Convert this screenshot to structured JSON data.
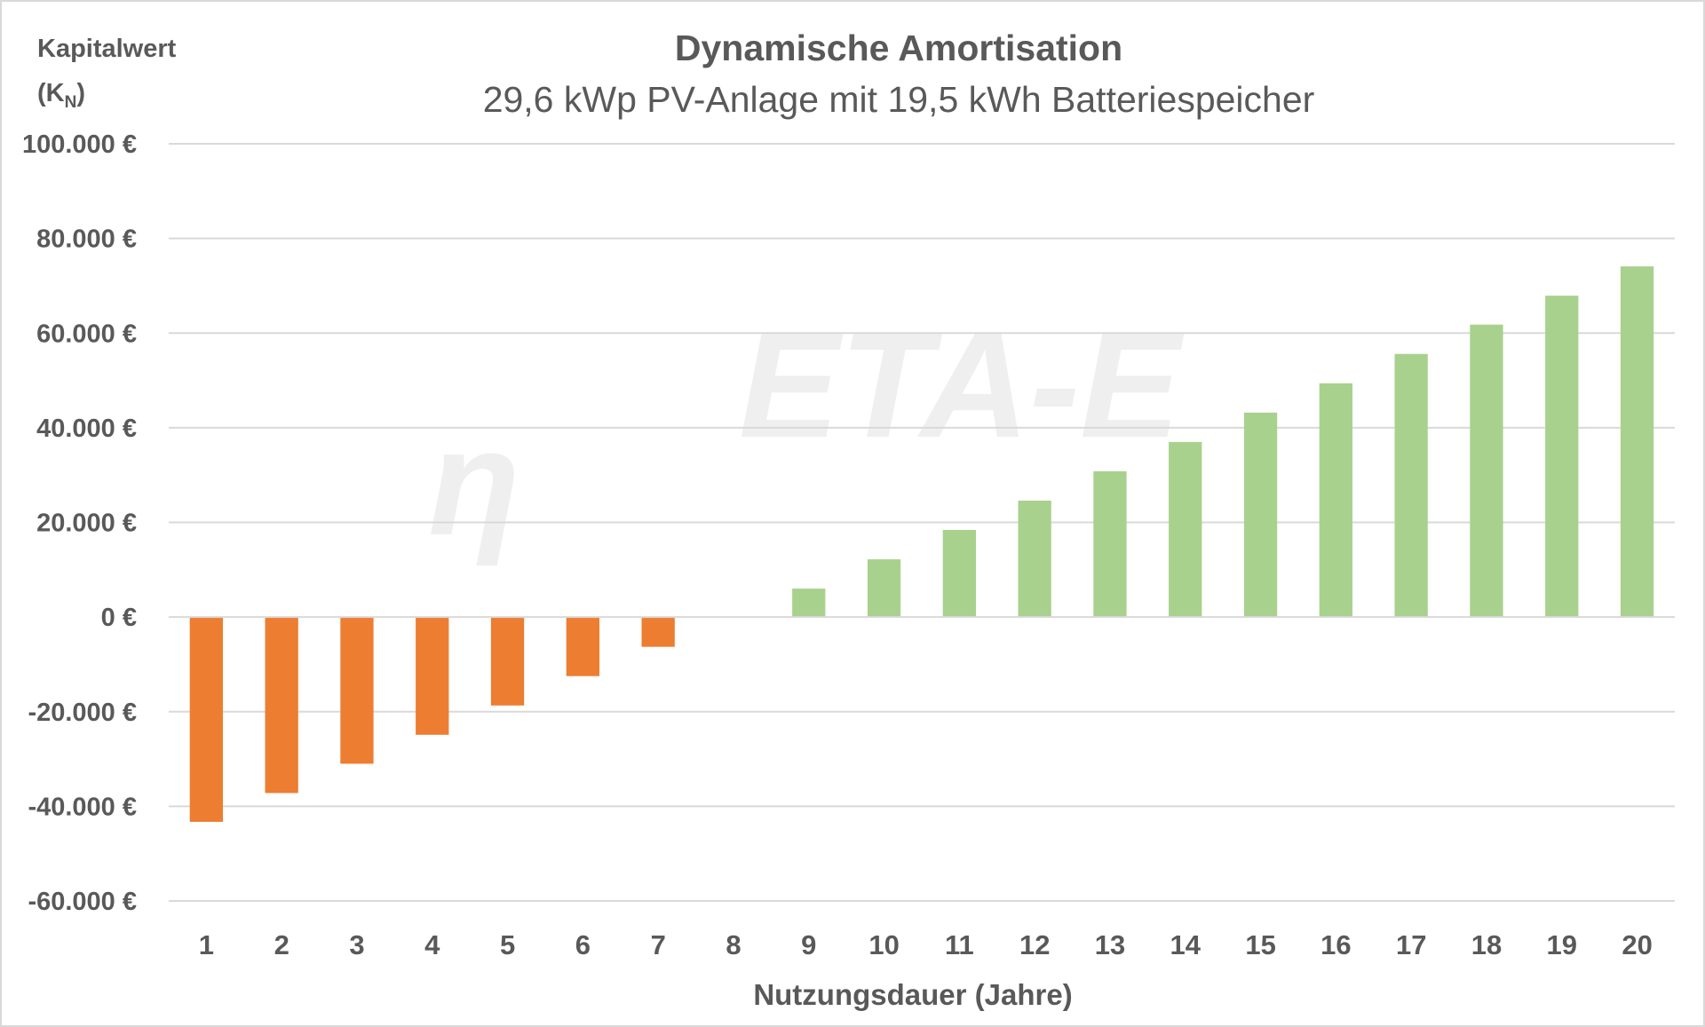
{
  "watermark": {
    "symbol": "η",
    "text": "ETA-E"
  },
  "chart_data": {
    "type": "bar",
    "title": "Dynamische Amortisation",
    "subtitle": "29,6 kWp PV-Anlage mit 19,5 kWh Batteriespeicher",
    "ylabel": {
      "line1": "Kapitalwert",
      "line2_open": "(K",
      "line2_sub": "N",
      "line2_close": ")"
    },
    "xlabel": "Nutzungsdauer (Jahre)",
    "categories": [
      "1",
      "2",
      "3",
      "4",
      "5",
      "6",
      "7",
      "8",
      "9",
      "10",
      "11",
      "12",
      "13",
      "14",
      "15",
      "16",
      "17",
      "18",
      "19",
      "20"
    ],
    "values": [
      -43300,
      -37200,
      -31000,
      -24900,
      -18700,
      -12500,
      -6300,
      0,
      6000,
      12200,
      18400,
      24600,
      30800,
      37000,
      43200,
      49400,
      55600,
      61800,
      67900,
      74100
    ],
    "ylim": [
      -60000,
      100000
    ],
    "yticks": [
      100000,
      80000,
      60000,
      40000,
      20000,
      0,
      -20000,
      -40000,
      -60000
    ],
    "ytick_labels": [
      "100.000 €",
      "80.000 €",
      "60.000 €",
      "40.000 €",
      "20.000 €",
      "0 €",
      "-20.000 €",
      "-40.000 €",
      "-60.000 €"
    ],
    "grid": true,
    "colors": {
      "negative": "#ED7D31",
      "positive": "#A9D18E",
      "text": "#595959",
      "grid": "#D9D9D9"
    }
  }
}
